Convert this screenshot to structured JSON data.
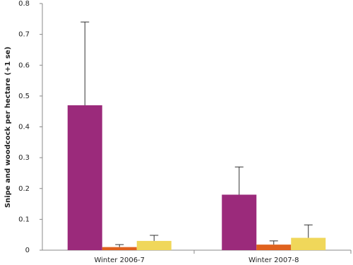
{
  "chart_data": {
    "type": "bar",
    "ylabel": "Snipe and woodcock per hectare (+1 se)",
    "categories": [
      "Winter 2006-7",
      "Winter 2007-8"
    ],
    "series": [
      {
        "color": "#9b2a7b",
        "values": [
          0.47,
          0.18
        ],
        "errors": [
          0.27,
          0.09
        ]
      },
      {
        "color": "#e0621e",
        "values": [
          0.01,
          0.018
        ],
        "errors": [
          0.008,
          0.012
        ]
      },
      {
        "color": "#f0d75a",
        "values": [
          0.03,
          0.04
        ],
        "errors": [
          0.018,
          0.042
        ]
      }
    ],
    "ylim": [
      0,
      0.8
    ],
    "yticks": [
      0,
      0.1,
      0.2,
      0.3,
      0.4,
      0.5,
      0.6,
      0.7,
      0.8
    ],
    "grid": false
  }
}
